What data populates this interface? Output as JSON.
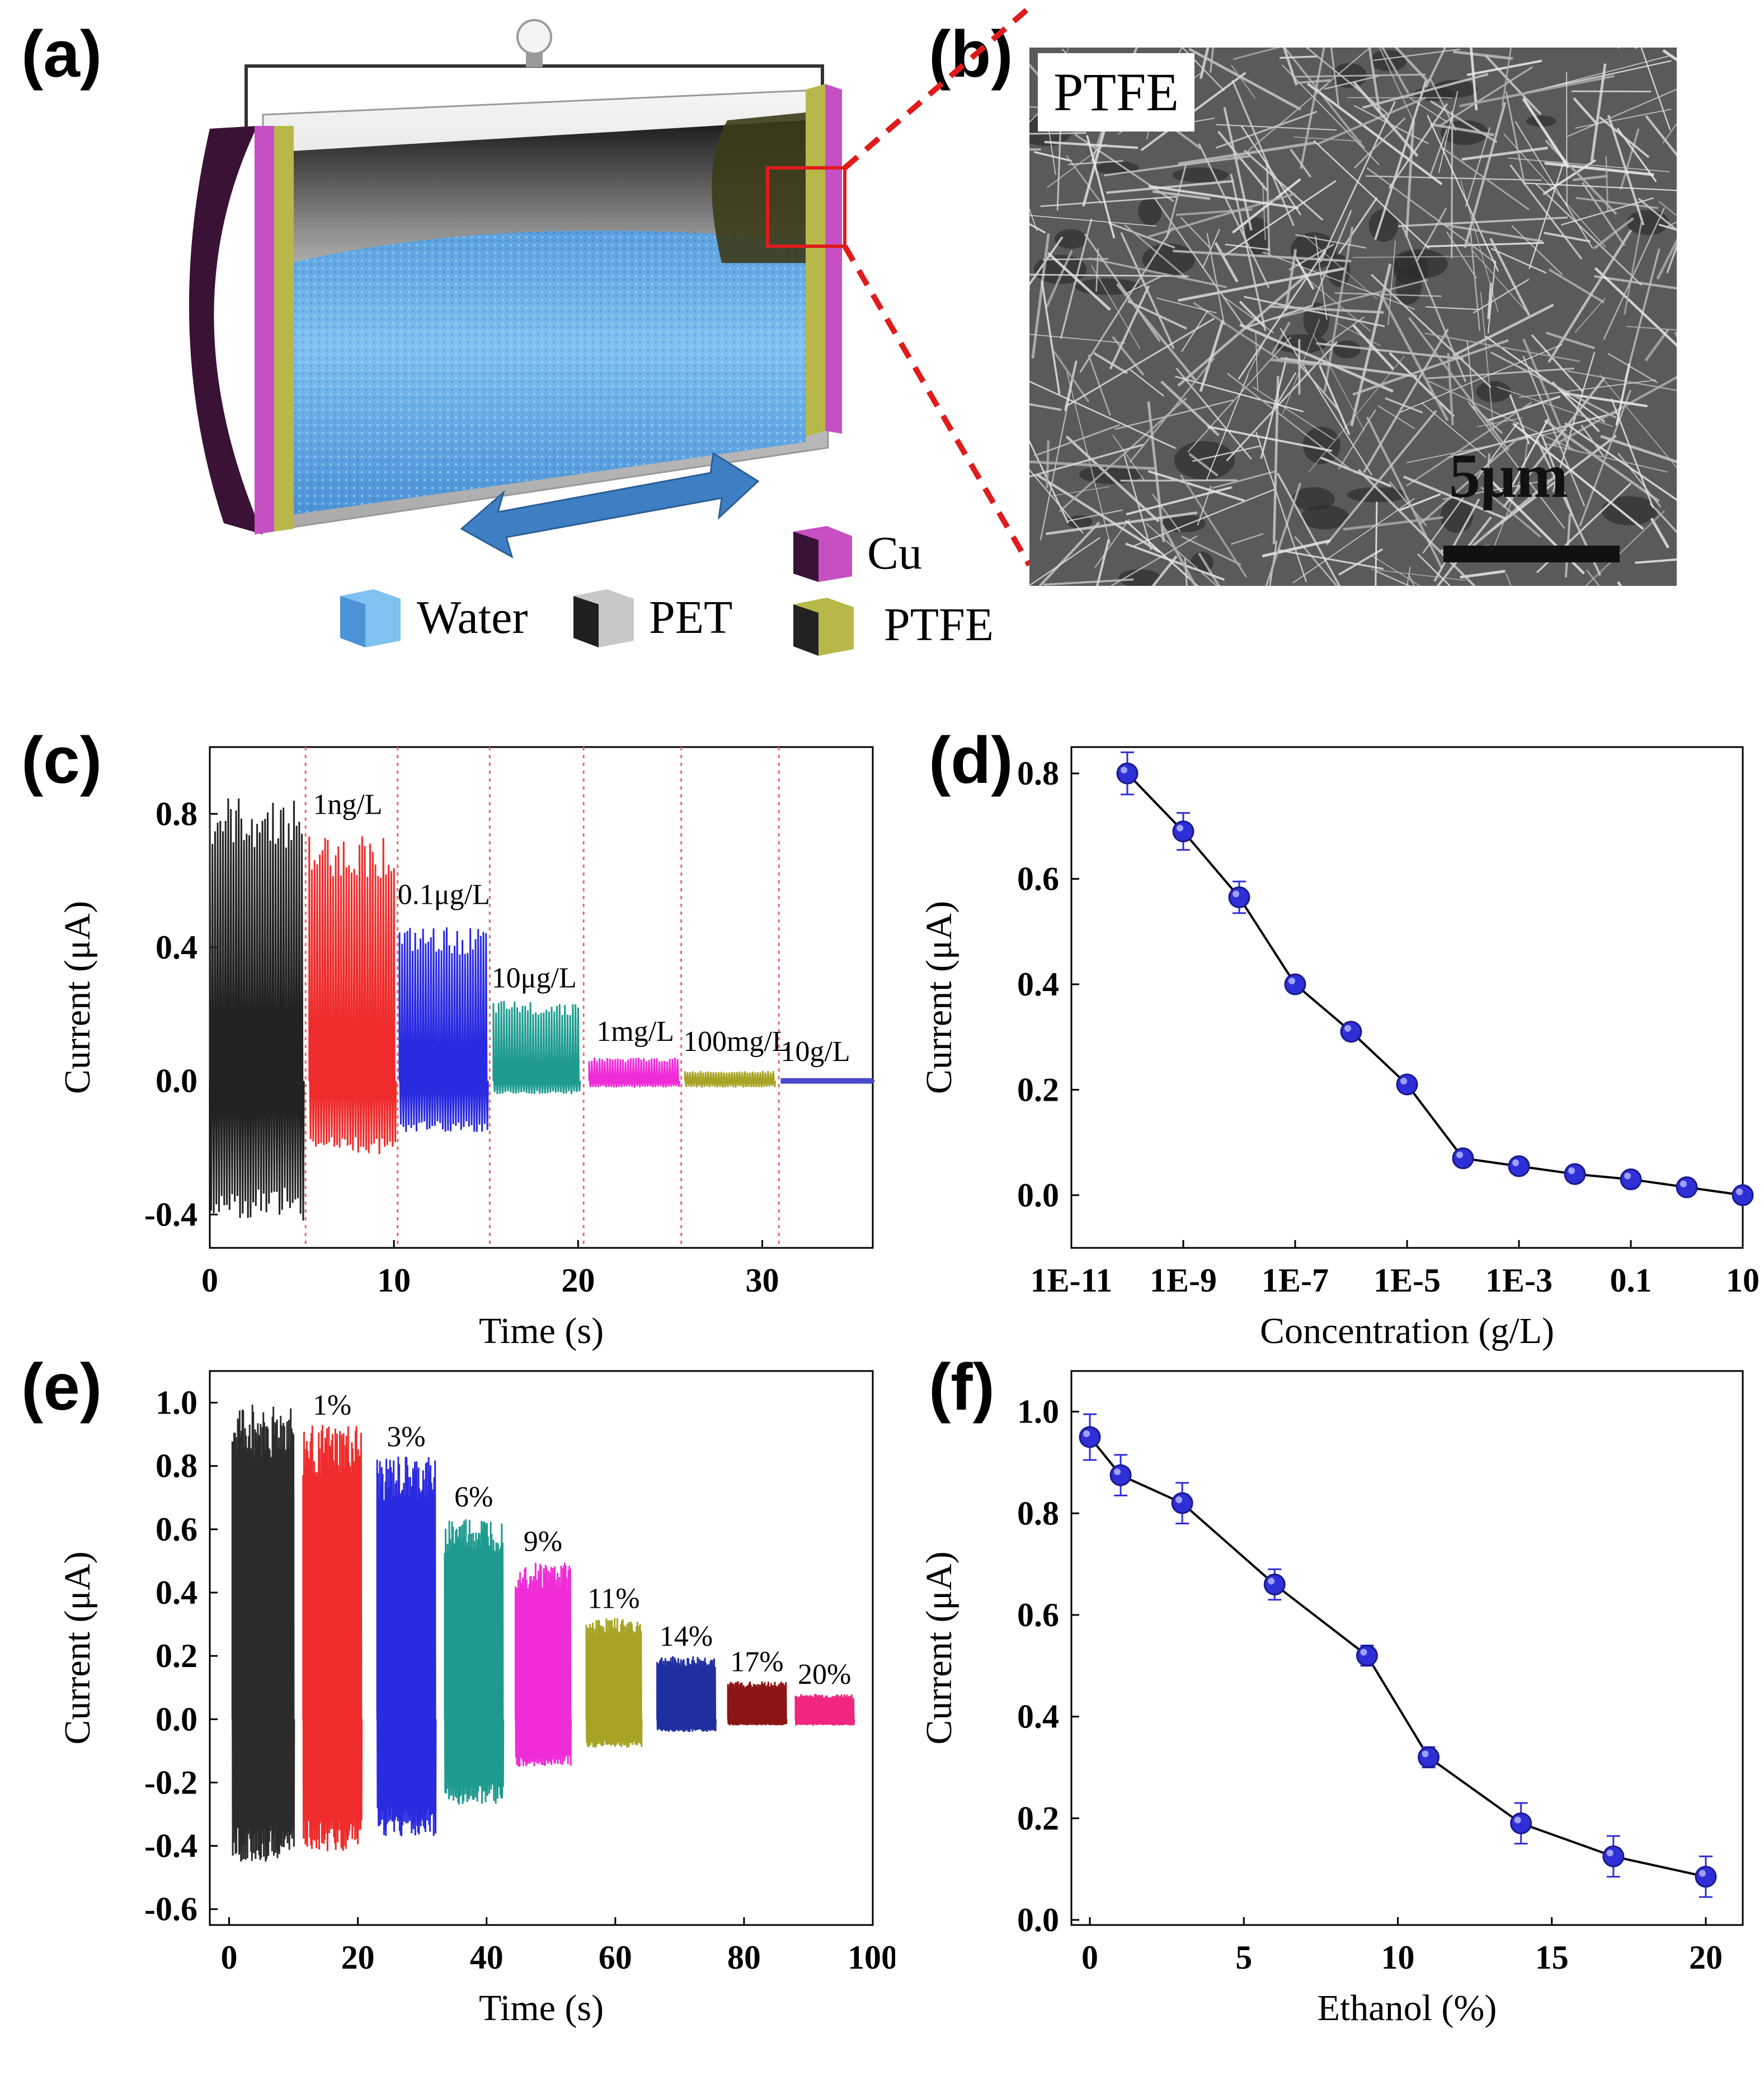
{
  "colors": {
    "copper": "#c64fc4",
    "copper_dark": "#3a1236",
    "pet": "#bdbdbd",
    "ptfe": "#b8b84a",
    "water": "#5aa7e0",
    "marker": "#2f2fd8",
    "red_dash": "#e01b1b",
    "arrow": "#3e7fc4"
  },
  "panel_a": {
    "letter": "(a)",
    "legend": {
      "water": "Water",
      "pet": "PET",
      "cu": "Cu",
      "ptfe": "PTFE"
    },
    "icons": [
      "lightbulb-icon",
      "double-arrow-icon"
    ]
  },
  "panel_b": {
    "letter": "(b)",
    "material_label": "PTFE",
    "scale_label": "5μm"
  },
  "chart_data": [
    {
      "panel": "(c)",
      "type": "line",
      "xlabel": "Time (s)",
      "ylabel": "Current (μA)",
      "xlim": [
        0,
        36
      ],
      "ylim": [
        -0.5,
        1.0
      ],
      "xticks": [
        "0",
        "10",
        "20",
        "30"
      ],
      "xtick_values": [
        0,
        10,
        20,
        30
      ],
      "yticks": [
        "-0.4",
        "0.0",
        "0.4",
        "0.8"
      ],
      "ytick_values": [
        -0.4,
        0.0,
        0.4,
        0.8
      ],
      "segment_boundaries": [
        5.2,
        10.2,
        15.2,
        20.3,
        25.6,
        30.9
      ],
      "segments": [
        {
          "label": "",
          "t_start": 0.0,
          "t_end": 5.0,
          "peak_max": 0.85,
          "peak_min": -0.42,
          "color": "#222222"
        },
        {
          "label": "1ng/L",
          "t_start": 5.4,
          "t_end": 10.0,
          "peak_max": 0.74,
          "peak_min": -0.22,
          "color": "#ef2b2b"
        },
        {
          "label": "0.1μg/L",
          "t_start": 10.3,
          "t_end": 15.0,
          "peak_max": 0.46,
          "peak_min": -0.16,
          "color": "#2a2ae0"
        },
        {
          "label": "10μg/L",
          "t_start": 15.4,
          "t_end": 20.0,
          "peak_max": 0.24,
          "peak_min": -0.04,
          "color": "#1e9b8f"
        },
        {
          "label": "1mg/L",
          "t_start": 20.6,
          "t_end": 25.4,
          "peak_max": 0.07,
          "peak_min": -0.02,
          "color": "#f02bd8"
        },
        {
          "label": "100mg/L",
          "t_start": 25.8,
          "t_end": 30.6,
          "peak_max": 0.03,
          "peak_min": -0.02,
          "color": "#a7a324"
        },
        {
          "label": "10g/L",
          "t_start": 31.0,
          "t_end": 36.0,
          "peak_max": 0.0,
          "peak_min": 0.0,
          "color": "#4a4ad0"
        }
      ]
    },
    {
      "panel": "(d)",
      "type": "line",
      "xlabel": "Concentration (g/L)",
      "ylabel": "Current (μA)",
      "xscale": "log",
      "xlim": [
        1e-11,
        10
      ],
      "ylim": [
        -0.1,
        0.85
      ],
      "xticks": [
        "1E-11",
        "1E-9",
        "1E-7",
        "1E-5",
        "1E-3",
        "0.1",
        "10"
      ],
      "xtick_values": [
        1e-11,
        1e-09,
        1e-07,
        1e-05,
        0.001,
        0.1,
        10
      ],
      "yticks": [
        "0.0",
        "0.2",
        "0.4",
        "0.6",
        "0.8"
      ],
      "ytick_values": [
        0.0,
        0.2,
        0.4,
        0.6,
        0.8
      ],
      "x": [
        1e-10,
        1e-09,
        1e-08,
        1e-07,
        1e-06,
        1e-05,
        0.0001,
        0.001,
        0.01,
        0.1,
        1,
        10
      ],
      "y": [
        0.8,
        0.69,
        0.565,
        0.4,
        0.31,
        0.21,
        0.07,
        0.055,
        0.04,
        0.03,
        0.015,
        0.0
      ],
      "yerr": [
        0.04,
        0.035,
        0.03,
        0.012,
        0.012,
        0.012,
        0.012,
        0.012,
        0.012,
        0.012,
        0.012,
        0.008
      ]
    },
    {
      "panel": "(e)",
      "type": "line",
      "xlabel": "Time (s)",
      "ylabel": "Current (μA)",
      "xlim": [
        -3,
        100
      ],
      "ylim": [
        -0.65,
        1.1
      ],
      "xticks": [
        "0",
        "20",
        "40",
        "60",
        "80",
        "100"
      ],
      "xtick_values": [
        0,
        20,
        40,
        60,
        80,
        100
      ],
      "yticks": [
        "-0.6",
        "-0.4",
        "-0.2",
        "0.0",
        "0.2",
        "0.4",
        "0.6",
        "0.8",
        "1.0"
      ],
      "ytick_values": [
        -0.6,
        -0.4,
        -0.2,
        0.0,
        0.2,
        0.4,
        0.6,
        0.8,
        1.0
      ],
      "segments": [
        {
          "label": "",
          "t_start": 0.5,
          "t_end": 10.0,
          "peak_max": 1.0,
          "peak_min": -0.45,
          "color": "#2b2b2b"
        },
        {
          "label": "1%",
          "t_start": 11.5,
          "t_end": 20.5,
          "peak_max": 0.93,
          "peak_min": -0.42,
          "color": "#ef2b2b"
        },
        {
          "label": "3%",
          "t_start": 23.0,
          "t_end": 32.0,
          "peak_max": 0.83,
          "peak_min": -0.37,
          "color": "#2a2ae0"
        },
        {
          "label": "6%",
          "t_start": 33.5,
          "t_end": 42.5,
          "peak_max": 0.64,
          "peak_min": -0.27,
          "color": "#1e9b8f"
        },
        {
          "label": "9%",
          "t_start": 44.5,
          "t_end": 53.0,
          "peak_max": 0.5,
          "peak_min": -0.15,
          "color": "#f02bd8"
        },
        {
          "label": "11%",
          "t_start": 55.5,
          "t_end": 64.0,
          "peak_max": 0.32,
          "peak_min": -0.09,
          "color": "#a7a324"
        },
        {
          "label": "14%",
          "t_start": 66.5,
          "t_end": 75.5,
          "peak_max": 0.2,
          "peak_min": -0.04,
          "color": "#1f2fa0"
        },
        {
          "label": "17%",
          "t_start": 77.5,
          "t_end": 86.5,
          "peak_max": 0.12,
          "peak_min": -0.02,
          "color": "#8b1515"
        },
        {
          "label": "20%",
          "t_start": 88.0,
          "t_end": 97.0,
          "peak_max": 0.08,
          "peak_min": -0.02,
          "color": "#f0267f"
        }
      ]
    },
    {
      "panel": "(f)",
      "type": "line",
      "xlabel": "Ethanol (%)",
      "ylabel": "Current (μA)",
      "xlim": [
        -0.6,
        21.2
      ],
      "ylim": [
        -0.01,
        1.08
      ],
      "xticks": [
        "0",
        "5",
        "10",
        "15",
        "20"
      ],
      "xtick_values": [
        0,
        5,
        10,
        15,
        20
      ],
      "yticks": [
        "0.0",
        "0.2",
        "0.4",
        "0.6",
        "0.8",
        "1.0"
      ],
      "ytick_values": [
        0.0,
        0.2,
        0.4,
        0.6,
        0.8,
        1.0
      ],
      "x": [
        0,
        1,
        3,
        6,
        9,
        11,
        14,
        17,
        20
      ],
      "y": [
        0.95,
        0.875,
        0.82,
        0.66,
        0.52,
        0.32,
        0.19,
        0.125,
        0.085
      ],
      "yerr": [
        0.045,
        0.04,
        0.04,
        0.03,
        0.02,
        0.02,
        0.04,
        0.04,
        0.04
      ]
    }
  ]
}
